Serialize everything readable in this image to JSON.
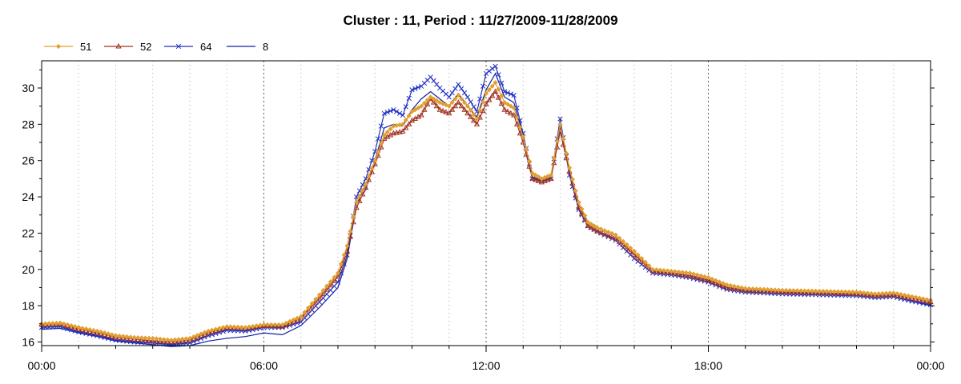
{
  "chart_data": {
    "type": "line",
    "title": "Cluster : 11, Period : 11/27/2009-11/28/2009",
    "xlabel": "",
    "ylabel": "",
    "x_tick_labels": [
      "00:00",
      "06:00",
      "12:00",
      "18:00",
      "00:00"
    ],
    "x_hours": [
      0,
      0.5,
      1,
      1.5,
      2,
      2.5,
      3,
      3.5,
      4,
      4.5,
      5,
      5.5,
      6,
      6.5,
      7,
      7.5,
      8,
      8.25,
      8.5,
      8.75,
      9,
      9.25,
      9.5,
      9.75,
      10,
      10.25,
      10.5,
      10.75,
      11,
      11.25,
      11.5,
      11.75,
      12,
      12.25,
      12.5,
      12.75,
      13,
      13.25,
      13.5,
      13.75,
      14,
      14.25,
      14.5,
      14.75,
      15,
      15.5,
      16,
      16.5,
      17,
      17.5,
      18,
      18.5,
      19,
      20,
      21,
      22,
      22.5,
      23,
      23.5,
      24
    ],
    "y_ticks": [
      16,
      18,
      20,
      22,
      24,
      26,
      28,
      30
    ],
    "ylim": [
      15.8,
      31.5
    ],
    "xlim": [
      0,
      24
    ],
    "grid": "dotted vertical",
    "legend_position": "top-left",
    "series": [
      {
        "name": "51",
        "color": "#e0a030",
        "marker": "diamond",
        "values": [
          17.0,
          17.05,
          16.8,
          16.6,
          16.35,
          16.25,
          16.2,
          16.1,
          16.2,
          16.6,
          16.85,
          16.8,
          16.95,
          16.95,
          17.4,
          18.6,
          19.8,
          21.3,
          23.7,
          24.7,
          26.0,
          27.4,
          27.9,
          28.0,
          28.7,
          29.0,
          29.5,
          29.2,
          29.0,
          29.6,
          29.0,
          28.3,
          29.7,
          30.3,
          29.2,
          28.9,
          27.3,
          25.3,
          25.0,
          25.2,
          28.0,
          25.6,
          23.7,
          22.6,
          22.3,
          21.9,
          21.0,
          20.0,
          19.9,
          19.8,
          19.55,
          19.15,
          18.95,
          18.85,
          18.8,
          18.75,
          18.65,
          18.7,
          18.5,
          18.3
        ]
      },
      {
        "name": "52",
        "color": "#a03020",
        "marker": "triangle",
        "values": [
          16.95,
          17.0,
          16.7,
          16.5,
          16.25,
          16.15,
          16.05,
          16.0,
          16.1,
          16.5,
          16.8,
          16.75,
          16.9,
          16.85,
          17.3,
          18.4,
          19.6,
          21.0,
          23.4,
          24.5,
          25.8,
          27.2,
          27.5,
          27.6,
          28.2,
          28.5,
          29.4,
          28.8,
          28.6,
          29.2,
          28.6,
          28.0,
          29.1,
          29.8,
          28.8,
          28.5,
          27.0,
          25.0,
          24.8,
          25.0,
          27.6,
          25.4,
          23.4,
          22.4,
          22.1,
          21.7,
          20.8,
          19.9,
          19.8,
          19.65,
          19.4,
          19.0,
          18.85,
          18.75,
          18.7,
          18.65,
          18.55,
          18.6,
          18.4,
          18.2
        ]
      },
      {
        "name": "64",
        "color": "#2030c0",
        "marker": "x",
        "values": [
          16.8,
          16.85,
          16.55,
          16.35,
          16.1,
          16.0,
          15.95,
          15.85,
          15.95,
          16.35,
          16.65,
          16.6,
          16.8,
          16.8,
          17.1,
          18.2,
          19.3,
          20.8,
          24.0,
          25.0,
          26.5,
          28.6,
          28.8,
          28.5,
          29.9,
          30.1,
          30.6,
          30.0,
          29.5,
          30.2,
          29.5,
          28.7,
          30.8,
          31.2,
          29.8,
          29.6,
          27.5,
          25.0,
          24.9,
          25.0,
          28.3,
          25.2,
          23.3,
          22.4,
          22.1,
          21.6,
          20.6,
          19.8,
          19.7,
          19.55,
          19.3,
          18.9,
          18.75,
          18.65,
          18.6,
          18.55,
          18.45,
          18.5,
          18.25,
          18.05
        ]
      },
      {
        "name": "8",
        "color": "#1020a0",
        "marker": "none",
        "values": [
          16.7,
          16.75,
          16.5,
          16.3,
          16.05,
          15.95,
          15.85,
          15.75,
          15.8,
          16.05,
          16.2,
          16.3,
          16.5,
          16.4,
          16.9,
          17.9,
          19.0,
          20.6,
          23.6,
          24.4,
          26.0,
          27.8,
          28.0,
          27.9,
          28.8,
          29.4,
          29.8,
          29.4,
          29.0,
          29.7,
          29.0,
          28.4,
          29.9,
          30.8,
          29.5,
          29.2,
          27.4,
          25.1,
          24.9,
          25.0,
          27.9,
          25.3,
          23.3,
          22.4,
          22.1,
          21.6,
          20.6,
          19.8,
          19.7,
          19.55,
          19.3,
          18.9,
          18.75,
          18.65,
          18.6,
          18.55,
          18.45,
          18.5,
          18.25,
          18.0
        ]
      }
    ]
  }
}
